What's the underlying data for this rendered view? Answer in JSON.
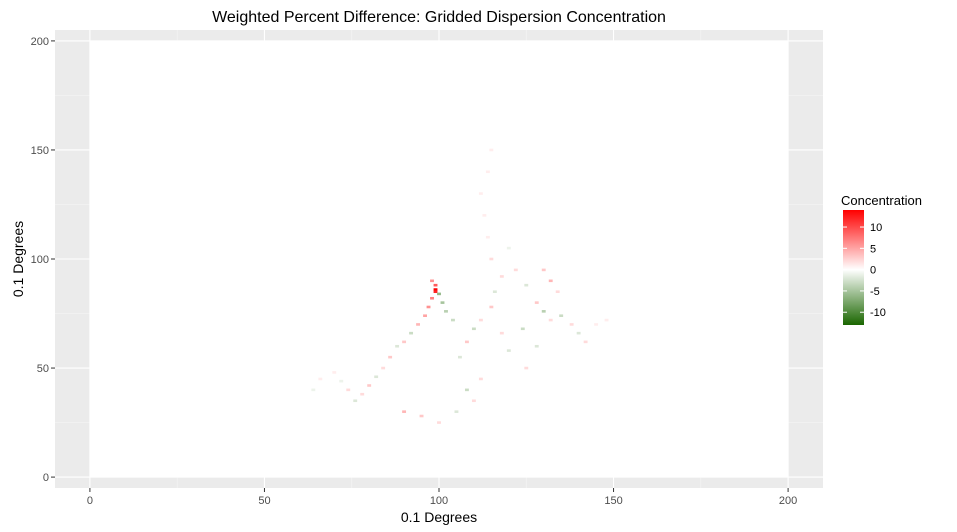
{
  "chart_data": {
    "type": "heatmap",
    "title": "Weighted Percent Difference: Gridded Dispersion Concentration",
    "xlabel": "0.1 Degrees",
    "ylabel": "0.1 Degrees",
    "xlim": [
      -10,
      210
    ],
    "ylim": [
      -5,
      205
    ],
    "x_ticks": [
      0,
      50,
      100,
      150,
      200
    ],
    "y_ticks": [
      0,
      50,
      100,
      150,
      200
    ],
    "grid": true,
    "background_color": "#ebebeb",
    "data_extent": {
      "x": [
        0,
        200
      ],
      "y": [
        0,
        200
      ]
    },
    "legend": {
      "title": "Concentration",
      "position": "right",
      "ticks": [
        10,
        5,
        0,
        -5,
        -10
      ],
      "range": [
        -13,
        14
      ],
      "colors": {
        "low": "#1a6600",
        "mid": "#ffffff",
        "high": "#ff0000"
      }
    },
    "cells": [
      {
        "x": 99,
        "y": 86,
        "value": 14
      },
      {
        "x": 99,
        "y": 85,
        "value": 12
      },
      {
        "x": 99,
        "y": 88,
        "value": 9
      },
      {
        "x": 98,
        "y": 90,
        "value": 6
      },
      {
        "x": 98,
        "y": 82,
        "value": 7
      },
      {
        "x": 97,
        "y": 78,
        "value": 6
      },
      {
        "x": 96,
        "y": 74,
        "value": 5
      },
      {
        "x": 101,
        "y": 80,
        "value": -5
      },
      {
        "x": 102,
        "y": 76,
        "value": -4
      },
      {
        "x": 104,
        "y": 72,
        "value": -3
      },
      {
        "x": 100,
        "y": 84,
        "value": -6
      },
      {
        "x": 94,
        "y": 70,
        "value": 4
      },
      {
        "x": 92,
        "y": 66,
        "value": -3
      },
      {
        "x": 90,
        "y": 62,
        "value": 3
      },
      {
        "x": 88,
        "y": 60,
        "value": -2
      },
      {
        "x": 86,
        "y": 55,
        "value": 3
      },
      {
        "x": 84,
        "y": 50,
        "value": 2
      },
      {
        "x": 82,
        "y": 46,
        "value": -2
      },
      {
        "x": 80,
        "y": 42,
        "value": 3
      },
      {
        "x": 78,
        "y": 38,
        "value": 2
      },
      {
        "x": 76,
        "y": 35,
        "value": -2
      },
      {
        "x": 74,
        "y": 40,
        "value": 2
      },
      {
        "x": 72,
        "y": 44,
        "value": -1
      },
      {
        "x": 70,
        "y": 48,
        "value": 1
      },
      {
        "x": 66,
        "y": 45,
        "value": 1
      },
      {
        "x": 64,
        "y": 40,
        "value": -1
      },
      {
        "x": 90,
        "y": 30,
        "value": 4
      },
      {
        "x": 95,
        "y": 28,
        "value": 3
      },
      {
        "x": 100,
        "y": 25,
        "value": 2
      },
      {
        "x": 105,
        "y": 30,
        "value": -2
      },
      {
        "x": 110,
        "y": 35,
        "value": 2
      },
      {
        "x": 108,
        "y": 40,
        "value": -3
      },
      {
        "x": 112,
        "y": 45,
        "value": 2
      },
      {
        "x": 106,
        "y": 55,
        "value": -2
      },
      {
        "x": 108,
        "y": 62,
        "value": 3
      },
      {
        "x": 110,
        "y": 68,
        "value": -3
      },
      {
        "x": 112,
        "y": 72,
        "value": 2
      },
      {
        "x": 115,
        "y": 78,
        "value": 3
      },
      {
        "x": 116,
        "y": 85,
        "value": -2
      },
      {
        "x": 118,
        "y": 92,
        "value": 2
      },
      {
        "x": 115,
        "y": 100,
        "value": 2
      },
      {
        "x": 114,
        "y": 110,
        "value": 1
      },
      {
        "x": 113,
        "y": 120,
        "value": 1
      },
      {
        "x": 112,
        "y": 130,
        "value": 1
      },
      {
        "x": 114,
        "y": 140,
        "value": 1
      },
      {
        "x": 115,
        "y": 150,
        "value": 1
      },
      {
        "x": 120,
        "y": 105,
        "value": -1
      },
      {
        "x": 122,
        "y": 95,
        "value": 2
      },
      {
        "x": 125,
        "y": 88,
        "value": -2
      },
      {
        "x": 128,
        "y": 80,
        "value": 3
      },
      {
        "x": 130,
        "y": 76,
        "value": -4
      },
      {
        "x": 132,
        "y": 72,
        "value": 2
      },
      {
        "x": 135,
        "y": 74,
        "value": -3
      },
      {
        "x": 138,
        "y": 70,
        "value": 2
      },
      {
        "x": 140,
        "y": 66,
        "value": -2
      },
      {
        "x": 142,
        "y": 62,
        "value": 2
      },
      {
        "x": 145,
        "y": 70,
        "value": 1
      },
      {
        "x": 148,
        "y": 72,
        "value": 1
      },
      {
        "x": 128,
        "y": 60,
        "value": -2
      },
      {
        "x": 125,
        "y": 50,
        "value": 2
      },
      {
        "x": 120,
        "y": 58,
        "value": -2
      },
      {
        "x": 118,
        "y": 66,
        "value": 2
      },
      {
        "x": 124,
        "y": 68,
        "value": -3
      },
      {
        "x": 132,
        "y": 90,
        "value": 4
      },
      {
        "x": 130,
        "y": 95,
        "value": 3
      },
      {
        "x": 134,
        "y": 85,
        "value": 2
      }
    ]
  }
}
